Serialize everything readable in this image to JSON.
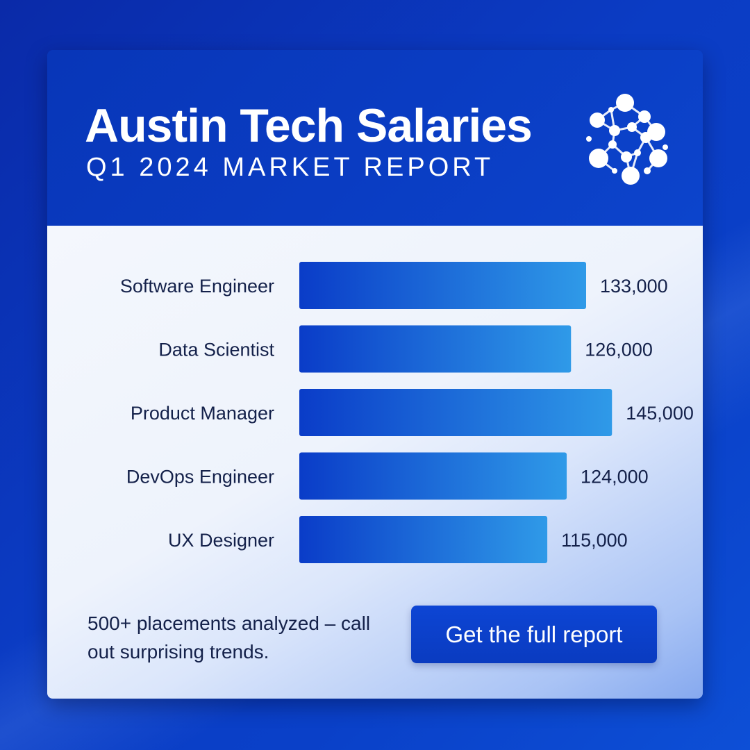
{
  "header": {
    "title": "Austin Tech Salaries",
    "subtitle": "Q1 2024 MARKET REPORT",
    "logo_icon": "network-nodes-icon"
  },
  "chart_data": {
    "type": "bar",
    "orientation": "horizontal",
    "categories": [
      "Software Engineer",
      "Data Scientist",
      "Product Manager",
      "DevOps Engineer",
      "UX Designer"
    ],
    "values": [
      133000,
      126000,
      145000,
      124000,
      115000
    ],
    "value_labels": [
      "133,000",
      "126,000",
      "145,000",
      "124,000",
      "115,000"
    ],
    "grid": false,
    "colors": {
      "bar_start": "#0a3cc8",
      "bar_end": "#2f9ae8"
    }
  },
  "footer": {
    "note": "500+ placements analyzed – call out surprising trends.",
    "cta_label": "Get the full report"
  },
  "colors": {
    "background": "#0a3cc4",
    "header": "#0a3cc2",
    "button": "#0b40cc",
    "text_dark": "#14214a"
  }
}
